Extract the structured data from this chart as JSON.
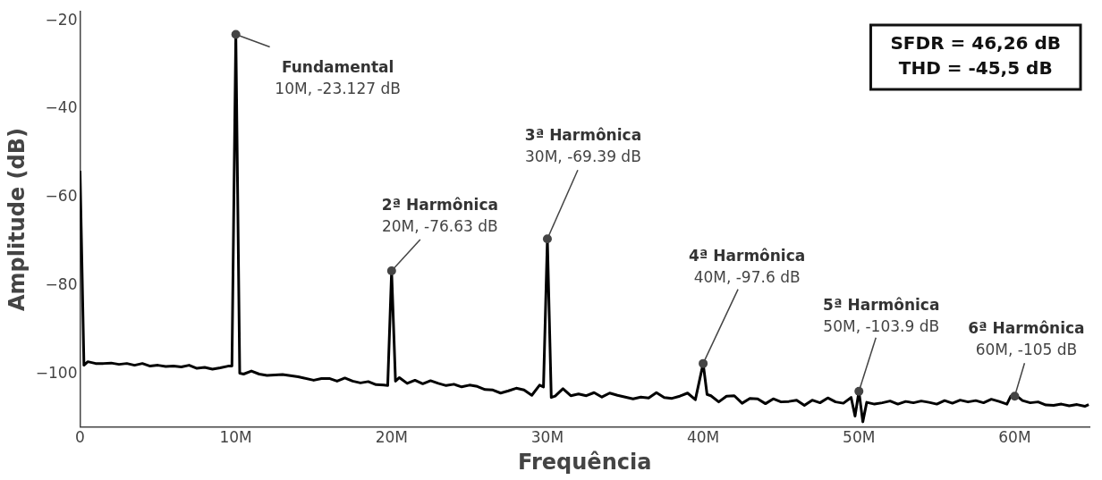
{
  "chart_data": {
    "type": "line",
    "xlabel": "Frequência",
    "ylabel": "Amplitude (dB)",
    "xlim": [
      0,
      64.8
    ],
    "ylim": [
      -112,
      -18
    ],
    "xticks": [
      {
        "value": 0,
        "label": "0"
      },
      {
        "value": 10,
        "label": "10M"
      },
      {
        "value": 20,
        "label": "20M"
      },
      {
        "value": 30,
        "label": "30M"
      },
      {
        "value": 40,
        "label": "40M"
      },
      {
        "value": 50,
        "label": "50M"
      },
      {
        "value": 60,
        "label": "60M"
      }
    ],
    "yticks": [
      -100,
      -80,
      -60,
      -40,
      -20
    ],
    "grid": false,
    "legend": false,
    "marker": "none",
    "line_style": "solid",
    "series": [
      {
        "color": "#000000",
        "x": [
          0,
          0.25,
          0.5,
          1,
          1.5,
          2,
          2.5,
          3,
          3.5,
          4,
          4.5,
          5,
          5.5,
          6,
          6.5,
          7,
          7.5,
          8,
          8.5,
          9,
          9.5,
          9.75,
          10,
          10.25,
          10.5,
          11,
          11.5,
          12,
          12.5,
          13,
          14,
          15,
          15.5,
          16,
          16.5,
          17,
          17.5,
          18,
          18.5,
          19,
          19.5,
          19.75,
          20,
          20.25,
          20.5,
          21,
          21.5,
          22,
          22.5,
          23,
          23.5,
          24,
          24.5,
          25,
          25.5,
          26,
          26.5,
          27,
          27.5,
          28,
          28.5,
          29,
          29.5,
          29.75,
          30,
          30.25,
          30.5,
          31,
          31.5,
          32,
          32.5,
          33,
          33.5,
          34,
          34.5,
          35,
          35.5,
          36,
          36.5,
          37,
          37.5,
          38,
          38.5,
          39,
          39.5,
          40,
          40.25,
          40.5,
          41,
          41.5,
          42,
          42.5,
          43,
          43.5,
          44,
          44.5,
          45,
          45.5,
          46,
          46.5,
          47,
          47.5,
          48,
          48.5,
          49,
          49.5,
          49.75,
          50,
          50.25,
          50.5,
          51,
          51.5,
          52,
          52.5,
          53,
          53.5,
          54,
          54.5,
          55,
          55.5,
          56,
          56.5,
          57,
          57.5,
          58,
          58.5,
          59,
          59.5,
          59.75,
          60,
          60.25,
          60.5,
          61,
          61.5,
          62,
          62.5,
          63,
          63.5,
          64,
          64.5,
          64.75
        ],
        "values": [
          -54,
          -98,
          -97.2,
          -97.6,
          -97.6,
          -97.5,
          -97.8,
          -97.6,
          -98,
          -97.6,
          -98.2,
          -98,
          -98.3,
          -98.2,
          -98.4,
          -98,
          -98.7,
          -98.5,
          -98.9,
          -98.6,
          -98.2,
          -98.2,
          -23.127,
          -99.8,
          -100,
          -99.3,
          -100,
          -100.3,
          -100.2,
          -100.1,
          -100.6,
          -101.4,
          -101,
          -101,
          -101.6,
          -100.9,
          -101.6,
          -102,
          -101.7,
          -102.4,
          -102.5,
          -102.6,
          -76.63,
          -101.6,
          -100.8,
          -102.1,
          -101.4,
          -102.2,
          -101.5,
          -102.1,
          -102.6,
          -102.3,
          -102.9,
          -102.5,
          -102.8,
          -103.5,
          -103.6,
          -104.3,
          -103.8,
          -103.2,
          -103.6,
          -104.8,
          -102.5,
          -102.9,
          -69.39,
          -105.3,
          -105,
          -103.3,
          -104.9,
          -104.5,
          -104.9,
          -104.2,
          -105.2,
          -104.3,
          -104.8,
          -105.2,
          -105.6,
          -105.2,
          -105.4,
          -104.2,
          -105.3,
          -105.5,
          -105,
          -104.3,
          -105.8,
          -97.6,
          -104.6,
          -104.9,
          -106.3,
          -105,
          -104.9,
          -106.6,
          -105.5,
          -105.6,
          -106.7,
          -105.6,
          -106.3,
          -106.2,
          -105.9,
          -107.1,
          -105.9,
          -106.5,
          -105.4,
          -106.3,
          -106.6,
          -105.3,
          -109.5,
          -103.9,
          -110.8,
          -106.4,
          -106.8,
          -106.5,
          -106.1,
          -106.8,
          -106.2,
          -106.5,
          -106.1,
          -106.4,
          -106.8,
          -106,
          -106.6,
          -105.9,
          -106.3,
          -106,
          -106.5,
          -105.7,
          -106.2,
          -106.8,
          -105,
          -105,
          -105.3,
          -106,
          -106.5,
          -106.3,
          -107,
          -107.1,
          -106.8,
          -107.2,
          -106.9,
          -107.3,
          -106.9
        ]
      }
    ],
    "annotations": [
      {
        "text": "Fundamental\n10M, -23.127 dB",
        "x": 10,
        "y": -23.127
      },
      {
        "text": "2ª Harmônica\n20M, -76.63 dB",
        "x": 20,
        "y": -76.63
      },
      {
        "text": "3ª Harmônica\n30M, -69.39 dB",
        "x": 30,
        "y": -69.39
      },
      {
        "text": "4ª Harmônica\n40M, -97.6 dB",
        "x": 40,
        "y": -97.6
      },
      {
        "text": "5ª Harmônica\n50M, -103.9 dB",
        "x": 50,
        "y": -103.9
      },
      {
        "text": "6ª Harmônica\n60M, -105 dB",
        "x": 60,
        "y": -105
      },
      "SFDR = 46,26 dB\nTHD = -45,5 dB"
    ]
  }
}
